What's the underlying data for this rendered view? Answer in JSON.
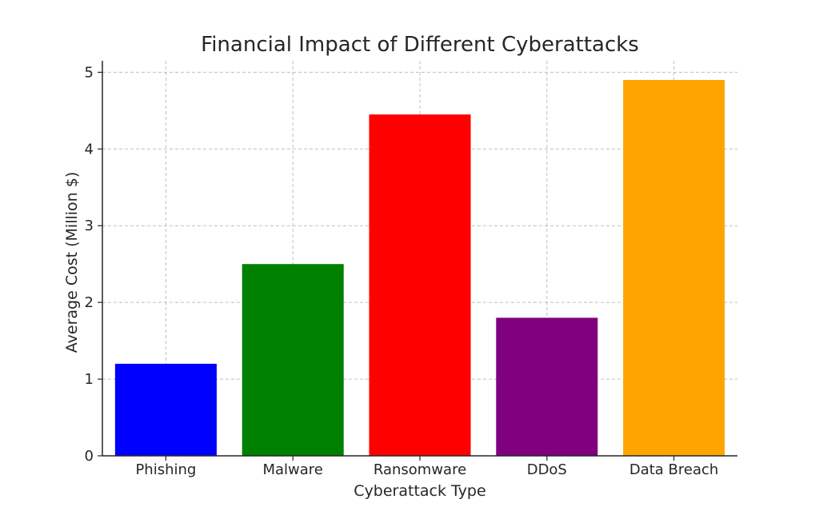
{
  "chart_data": {
    "type": "bar",
    "title": "Financial Impact of Different Cyberattacks",
    "xlabel": "Cyberattack Type",
    "ylabel": "Average Cost (Million $)",
    "categories": [
      "Phishing",
      "Malware",
      "Ransomware",
      "DDoS",
      "Data Breach"
    ],
    "values": [
      1.2,
      2.5,
      4.45,
      1.8,
      4.9
    ],
    "colors": [
      "#0000ff",
      "#008000",
      "#ff0000",
      "#800080",
      "#ffa500"
    ],
    "ylim": [
      0,
      5.15
    ],
    "yticks": [
      0,
      1,
      2,
      3,
      4,
      5
    ],
    "ytick_labels": [
      "0",
      "1",
      "2",
      "3",
      "4",
      "5"
    ],
    "grid": true,
    "legend": "none"
  }
}
